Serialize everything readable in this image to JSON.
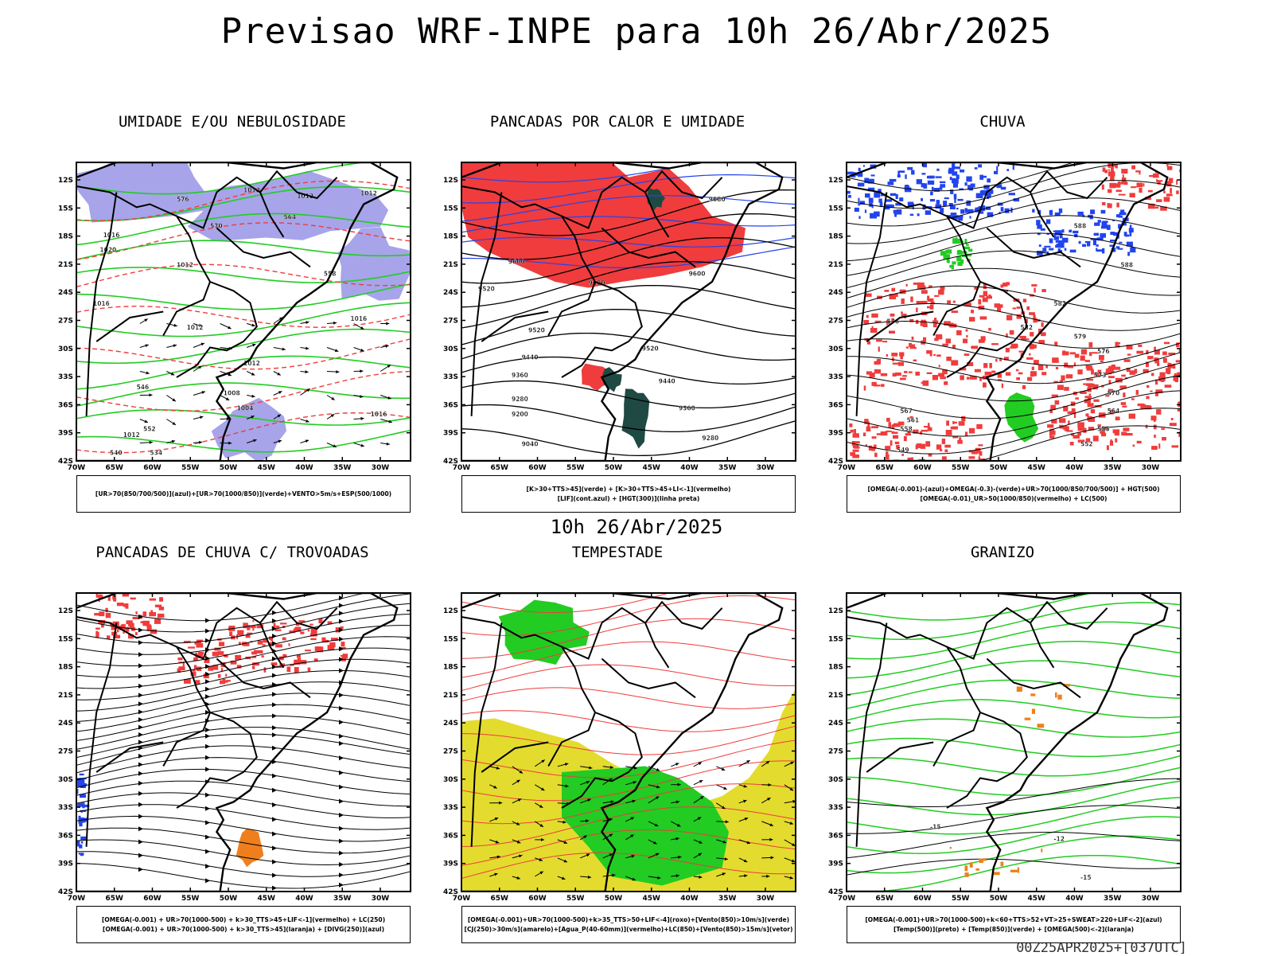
{
  "page": {
    "title": "Previsao WRF-INPE  para 10h 26/Abr/2025",
    "mid_title": "10h 26/Abr/2025",
    "footer": "00Z25APR2025+[037UTC]"
  },
  "axes": {
    "lat_ticks": [
      "12S",
      "15S",
      "18S",
      "21S",
      "24S",
      "27S",
      "30S",
      "33S",
      "36S",
      "39S",
      "42S"
    ],
    "lon_ticks": [
      "70W",
      "65W",
      "60W",
      "55W",
      "50W",
      "45W",
      "40W",
      "35W",
      "30W"
    ]
  },
  "colors": {
    "red": "#f03c3c",
    "green": "#22cc22",
    "blue": "#2244ee",
    "lavender": "#a7a4ea",
    "yellow": "#e3dc2e",
    "orange": "#ef7f1d",
    "dark_teal": "#1f4a44",
    "black": "#000000"
  },
  "panels": [
    {
      "title": "UMIDADE E/OU NEBULOSIDADE",
      "legend": [
        "[UR>70(850/700/500)](azul)+[UR>70(1000/850)](verde)+VENTO>5m/s+ESP(500/1000)"
      ],
      "contour_labels": [
        "1012",
        "1012",
        "1012",
        "1016",
        "1020",
        "1012",
        "1016",
        "1012",
        "1016",
        "1012",
        "1004",
        "1008",
        "1016",
        "1012",
        "576",
        "570",
        "564",
        "558",
        "546",
        "552",
        "540",
        "534"
      ]
    },
    {
      "title": "PANCADAS POR CALOR E UMIDADE",
      "legend": [
        "[K>30+TTS>45](verde) + [K>30+TTS>45+LI<-1](vermelho)",
        "[LIF](cont.azul) + [HGT(300)](linha preta)"
      ],
      "contour_labels": [
        "9680",
        "9600",
        "9600",
        "9600",
        "9520",
        "9520",
        "9520",
        "9440",
        "9440",
        "9360",
        "9360",
        "9280",
        "9280",
        "9200",
        "9040"
      ]
    },
    {
      "title": "CHUVA",
      "legend": [
        "[OMEGA(-0.001)-(azul)+OMEGA(-0.3)-(verde)+UR>70(1000/850/700/500)] + HGT(500)",
        "[OMEGA(-0.01)_UR>50(1000/850)(vermelho) + LC(500)"
      ],
      "contour_labels": [
        "588",
        "588",
        "582",
        "582",
        "579",
        "576",
        "576",
        "573",
        "570",
        "567",
        "564",
        "561",
        "558",
        "555",
        "552",
        "549"
      ]
    },
    {
      "title": "PANCADAS DE CHUVA C/ TROVOADAS",
      "legend": [
        "[OMEGA(-0.001) + UR>70(1000-500) + k>30_TTS>45+LIF<-1](vermelho) + LC(250)",
        "[OMEGA(-0.001) + UR>70(1000-500) + k>30_TTS>45](laranja) + [DIVG(250)](azul)"
      ],
      "contour_labels": []
    },
    {
      "title": "TEMPESTADE",
      "legend": [
        "[OMEGA(-0.001)+UR>70(1000-500)+k>35_TTS>50+LIF<-4](roxo)+[Vento(850)>10m/s](verde)",
        "[CJ(250)>30m/s](amarelo)+[Agua_P(40-60mm)](vermelho)+LC(850)+[Vento(850)>15m/s](vetor)"
      ],
      "contour_labels": []
    },
    {
      "title": "GRANIZO",
      "legend": [
        "[OMEGA(-0.001)+UR>70(1000-500)+k<60+TTS>52+VT>25+SWEAT>220+LIF<-2](azul)",
        "[Temp(500)](preto) + [Temp(850)](verde) + [OMEGA(500)<-2](laranja)"
      ],
      "contour_labels": [
        "-15",
        "-12",
        "-15"
      ]
    }
  ]
}
